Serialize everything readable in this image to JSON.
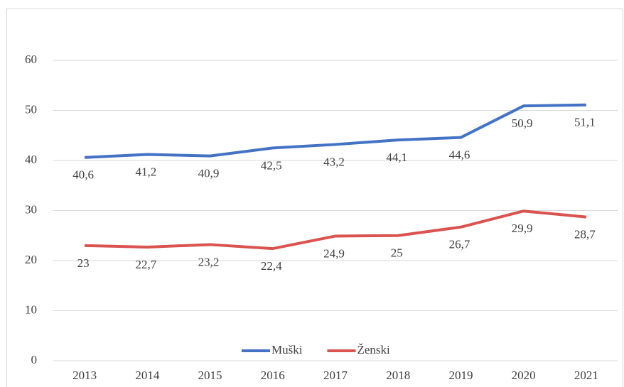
{
  "chart_data": {
    "type": "line",
    "categories": [
      "2013",
      "2014",
      "2015",
      "2016",
      "2017",
      "2018",
      "2019",
      "2020",
      "2021"
    ],
    "series": [
      {
        "name": "Muški",
        "color": "#4472c4",
        "values": [
          40.6,
          41.2,
          40.9,
          42.5,
          43.2,
          44.1,
          44.6,
          50.9,
          51.1
        ],
        "value_labels": [
          "40,6",
          "41,2",
          "40,9",
          "42,5",
          "43,2",
          "44,1",
          "44,6",
          "50,9",
          "51,1"
        ]
      },
      {
        "name": "Ženski",
        "color": "#d9534f",
        "values": [
          23,
          22.7,
          23.2,
          22.4,
          24.9,
          25,
          26.7,
          29.9,
          28.7
        ],
        "value_labels": [
          "23",
          "22,7",
          "23,2",
          "22,4",
          "24,9",
          "25",
          "26,7",
          "29,9",
          "28,7"
        ]
      }
    ],
    "ylim": [
      0,
      60
    ],
    "yticks": [
      0,
      10,
      20,
      30,
      40,
      50,
      60
    ],
    "grid": true,
    "legend": "bottom"
  }
}
